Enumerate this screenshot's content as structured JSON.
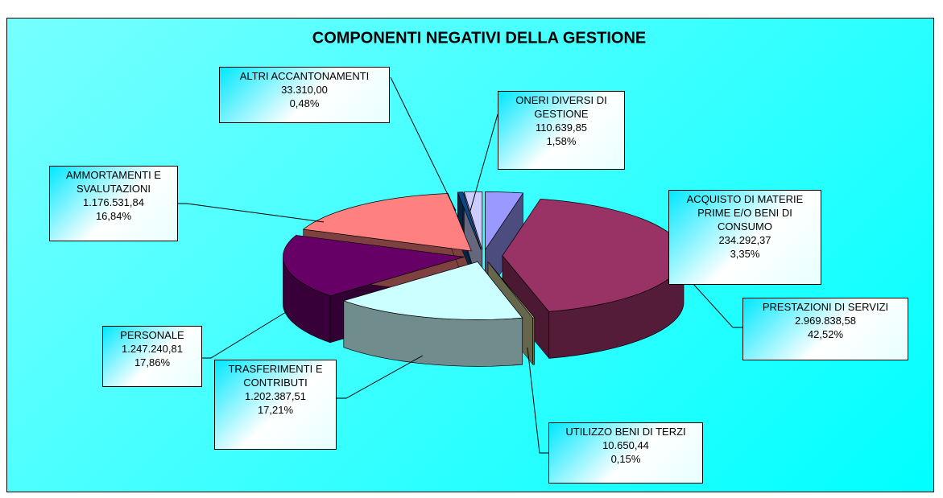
{
  "chart_data": {
    "type": "pie3d",
    "title": "COMPONENTI NEGATIVI DELLA GESTIONE",
    "categories": [
      "ACQUISTO DI MATERIE PRIME E/O BENI DI CONSUMO",
      "PRESTAZIONI DI SERVIZI",
      "UTILIZZO BENI DI TERZI",
      "TRASFERIMENTI E CONTRIBUTI",
      "PERSONALE",
      "AMMORTAMENTI E SVALUTAZIONI",
      "ALTRI ACCANTONAMENTI",
      "ONERI DIVERSI DI GESTIONE"
    ],
    "values": [
      234292.37,
      2969838.58,
      10650.44,
      1202387.51,
      1247240.81,
      1176531.84,
      33310.0,
      110639.85
    ],
    "value_labels": [
      "234.292,37",
      "2.969.838,58",
      "10.650,44",
      "1.202.387,51",
      "1.247.240,81",
      "1.176.531,84",
      "33.310,00",
      "110.639,85"
    ],
    "percentages": [
      3.35,
      42.52,
      0.15,
      17.21,
      17.86,
      16.84,
      0.48,
      1.58
    ],
    "percentage_labels": [
      "3,35%",
      "42,52%",
      "0,15%",
      "17,21%",
      "17,86%",
      "16,84%",
      "0,48%",
      "1,58%"
    ],
    "colors": [
      "#9999ff",
      "#993366",
      "#cccc99",
      "#ccffff",
      "#660066",
      "#ff8080",
      "#0a4a8a",
      "#ccccff"
    ]
  }
}
